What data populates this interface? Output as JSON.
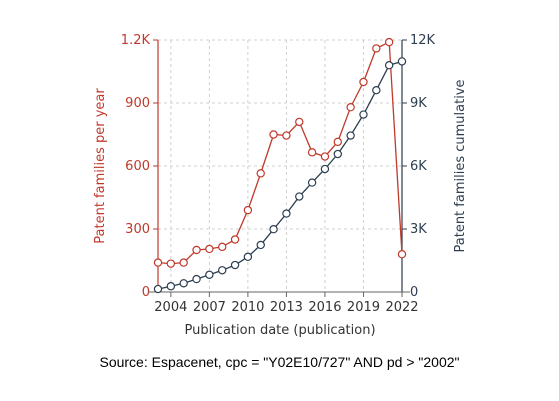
{
  "chart_data": {
    "type": "line",
    "xlabel": "Publication date (publication)",
    "ylabel_left": "Patent families per year",
    "ylabel_right": "Patent families cumulative",
    "x_ticks": [
      "2004",
      "2007",
      "2010",
      "2013",
      "2016",
      "2019",
      "2022"
    ],
    "left_ticks": [
      "0",
      "300",
      "600",
      "900",
      "1.2K"
    ],
    "right_ticks": [
      "0",
      "3K",
      "6K",
      "9K",
      "12K"
    ],
    "xlim": [
      2003,
      2022
    ],
    "ylim_left": [
      0,
      1200
    ],
    "ylim_right": [
      0,
      12000
    ],
    "grid": true,
    "colors": {
      "per_year": "#c0392b",
      "cumulative": "#2c3e50",
      "grid": "#d0d0d0"
    },
    "x": [
      2003,
      2004,
      2005,
      2006,
      2007,
      2008,
      2009,
      2010,
      2011,
      2012,
      2013,
      2014,
      2015,
      2016,
      2017,
      2018,
      2019,
      2020,
      2021,
      2022
    ],
    "series": [
      {
        "key": "per_year",
        "axis": "left",
        "values": [
          140,
          135,
          140,
          200,
          205,
          215,
          250,
          390,
          565,
          750,
          745,
          810,
          665,
          645,
          715,
          880,
          1000,
          1160,
          1190,
          180
        ]
      },
      {
        "key": "cumulative",
        "axis": "right",
        "values": [
          140,
          275,
          415,
          615,
          820,
          1035,
          1285,
          1675,
          2240,
          2990,
          3735,
          4545,
          5210,
          5855,
          6570,
          7450,
          8450,
          9610,
          10800,
          10980
        ]
      }
    ]
  },
  "source": "Source: Espacenet, cpc = \"Y02E10/727\" AND pd > \"2002\""
}
